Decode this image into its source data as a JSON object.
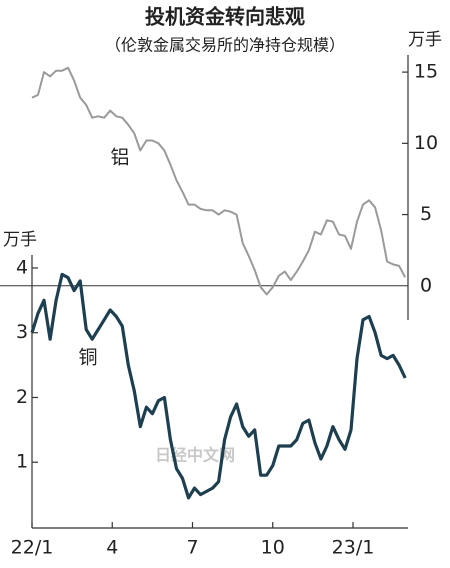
{
  "chart_data": {
    "type": "line",
    "title": "投机资金转向悲观",
    "subtitle": "（伦敦金属交易所的净持仓规模）",
    "y_axis_label": "万手",
    "y2_axis_label": "万手",
    "watermark": "日经中文网",
    "x": [
      0,
      0.225,
      0.45,
      0.675,
      0.9,
      1.125,
      1.35,
      1.575,
      1.8,
      2.025,
      2.25,
      2.475,
      2.7,
      2.925,
      3.15,
      3.375,
      3.6,
      3.825,
      4.05,
      4.275,
      4.5,
      4.725,
      4.95,
      5.175,
      5.4,
      5.625,
      5.85,
      6.075,
      6.3,
      6.525,
      6.75,
      6.975,
      7.2,
      7.425,
      7.65,
      7.875,
      8.1,
      8.325,
      8.55,
      8.775,
      9,
      9.225,
      9.45,
      9.675,
      9.9,
      10.125,
      10.35,
      10.575,
      10.8,
      11.025,
      11.25,
      11.475,
      11.7,
      11.925,
      12.15,
      12.375,
      12.6,
      12.825,
      13.05,
      13.275,
      13.5,
      13.725,
      13.95
    ],
    "xlim": [
      0,
      14
    ],
    "xticks": [
      {
        "value": 0,
        "label": "22/1"
      },
      {
        "value": 3,
        "label": "4"
      },
      {
        "value": 6,
        "label": "7"
      },
      {
        "value": 9,
        "label": "10"
      },
      {
        "value": 12,
        "label": "23/1"
      }
    ],
    "ylim": [
      0,
      4.2
    ],
    "yticks": [
      1,
      2,
      3,
      4
    ],
    "y2lim": [
      -2.4,
      16.2
    ],
    "y2ticks": [
      0,
      5,
      10,
      15
    ],
    "series": [
      {
        "name": "铝",
        "color": "#9a9a9a",
        "axis": "y2",
        "values": [
          13.2,
          13.4,
          15.0,
          14.7,
          15.1,
          15.1,
          15.3,
          14.4,
          13.2,
          12.7,
          11.8,
          11.9,
          11.8,
          12.3,
          11.9,
          11.8,
          11.3,
          10.7,
          9.5,
          10.2,
          10.2,
          10.0,
          9.5,
          8.5,
          7.4,
          6.6,
          5.7,
          5.7,
          5.4,
          5.3,
          5.3,
          5.0,
          5.3,
          5.2,
          5.0,
          3.0,
          2.1,
          1.1,
          -0.1,
          -0.6,
          -0.1,
          0.7,
          1.0,
          0.4,
          1.0,
          1.7,
          2.5,
          3.8,
          3.6,
          4.6,
          4.5,
          3.6,
          3.5,
          2.6,
          4.5,
          5.7,
          6.0,
          5.5,
          3.9,
          1.7,
          1.5,
          1.4,
          0.6
        ]
      },
      {
        "name": "铜",
        "color": "#1d3f50",
        "axis": "y",
        "values": [
          3.0,
          3.3,
          3.5,
          2.9,
          3.5,
          3.9,
          3.85,
          3.65,
          3.8,
          3.05,
          2.9,
          3.05,
          3.2,
          3.35,
          3.25,
          3.1,
          2.5,
          2.1,
          1.55,
          1.85,
          1.75,
          1.95,
          2.0,
          1.35,
          0.9,
          0.75,
          0.45,
          0.6,
          0.5,
          0.55,
          0.6,
          0.7,
          1.35,
          1.7,
          1.9,
          1.55,
          1.4,
          1.5,
          0.8,
          0.8,
          0.95,
          1.25,
          1.25,
          1.25,
          1.35,
          1.6,
          1.65,
          1.3,
          1.05,
          1.25,
          1.55,
          1.35,
          1.2,
          1.5,
          2.6,
          3.2,
          3.25,
          3.0,
          2.65,
          2.6,
          2.65,
          2.5,
          2.3
        ]
      }
    ]
  }
}
